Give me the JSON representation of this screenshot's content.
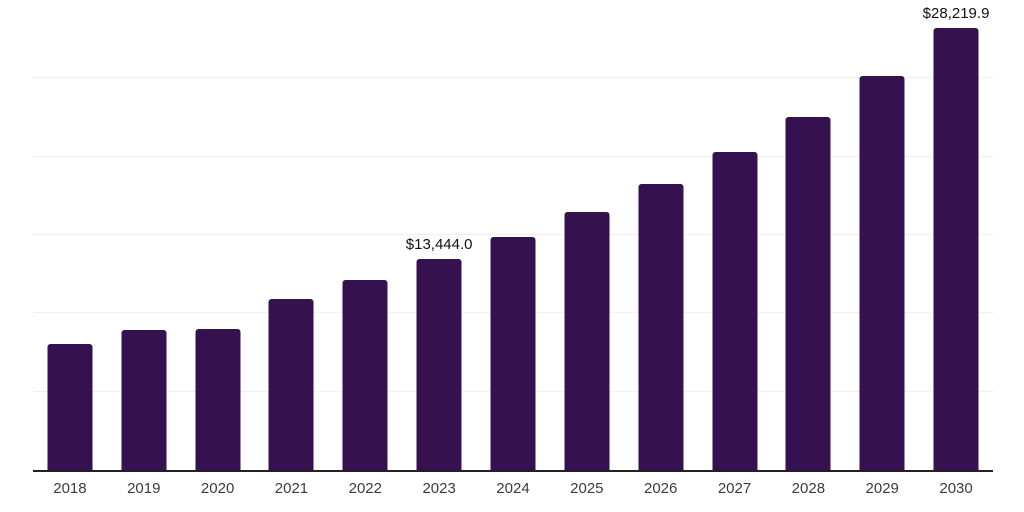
{
  "chart_data": {
    "type": "bar",
    "categories": [
      "2018",
      "2019",
      "2020",
      "2021",
      "2022",
      "2023",
      "2024",
      "2025",
      "2026",
      "2027",
      "2028",
      "2029",
      "2030"
    ],
    "values": [
      8030,
      8950,
      9010,
      10920,
      12100,
      13444.0,
      14880,
      16470,
      18250,
      20290,
      22520,
      25130,
      28219.9
    ],
    "data_labels": [
      "",
      "",
      "",
      "",
      "",
      "$13,444.0",
      "",
      "",
      "",
      "",
      "",
      "",
      "$28,219.9"
    ],
    "title": "",
    "xlabel": "",
    "ylabel": "",
    "ylim": [
      0,
      30000
    ],
    "gridline_values": [
      5000,
      10000,
      15000,
      20000,
      25000,
      30000
    ],
    "grid": "on",
    "legend": "none",
    "colors": {
      "bar": "#361150",
      "gridline": "#f0f0f0",
      "axis_line": "#222222",
      "axis_label": "#3c3c3c",
      "data_label": "#111111",
      "background": "#ffffff"
    }
  }
}
